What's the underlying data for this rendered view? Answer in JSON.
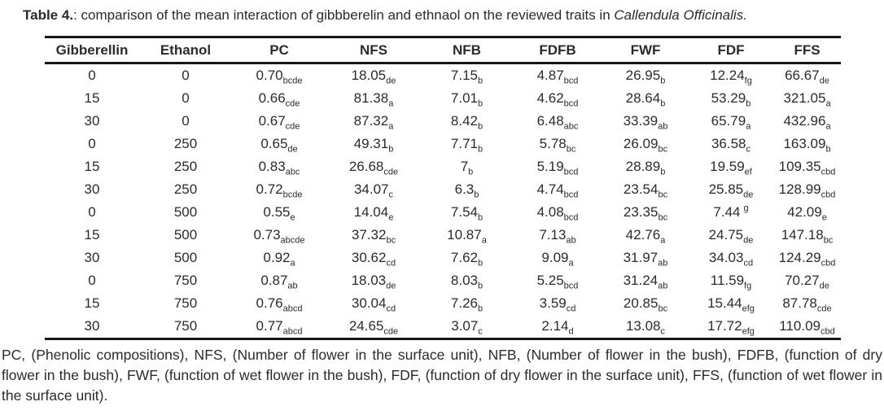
{
  "title": {
    "label": "Table 4.",
    "text": ": comparison of the mean interaction of gibbberelin and ethnaol on the reviewed traits in ",
    "species": "Callendula Officinalis."
  },
  "table": {
    "headers": [
      "Gibberellin",
      "Ethanol",
      "PC",
      "NFS",
      "NFB",
      "FDFB",
      "FWF",
      "FDF",
      "FFS"
    ],
    "rows": [
      [
        {
          "t": "0"
        },
        {
          "t": "0"
        },
        {
          "t": "0.70",
          "sub": "bcde"
        },
        {
          "t": "18.05",
          "sub": "de"
        },
        {
          "t": "7.15",
          "sub": "b"
        },
        {
          "t": "4.87",
          "sub": "bcd"
        },
        {
          "t": "26.95",
          "sub": "b"
        },
        {
          "t": "12.24",
          "sub": "fg"
        },
        {
          "t": "66.67",
          "sub": "de"
        }
      ],
      [
        {
          "t": "15"
        },
        {
          "t": "0"
        },
        {
          "t": "0.66",
          "sub": "cde"
        },
        {
          "t": "81.38",
          "sub": "a"
        },
        {
          "t": "7.01",
          "sub": "b"
        },
        {
          "t": "4.62",
          "sub": "bcd"
        },
        {
          "t": "28.64",
          "sub": "b"
        },
        {
          "t": "53.29",
          "sub": "b"
        },
        {
          "t": "321.05",
          "sub": "a"
        }
      ],
      [
        {
          "t": "30"
        },
        {
          "t": "0"
        },
        {
          "t": "0.67",
          "sub": "cde"
        },
        {
          "t": "87.32",
          "sub": "a"
        },
        {
          "t": "8.42",
          "sub": "b"
        },
        {
          "t": "6.48",
          "sub": "abc"
        },
        {
          "t": "33.39",
          "sub": "ab"
        },
        {
          "t": "65.79",
          "sub": "a"
        },
        {
          "t": "432.96",
          "sub": "a"
        }
      ],
      [
        {
          "t": "0"
        },
        {
          "t": "250"
        },
        {
          "t": "0.65",
          "sub": "de"
        },
        {
          "t": "49.31",
          "sub": "b"
        },
        {
          "t": "7.71",
          "sub": "b"
        },
        {
          "t": "5.78",
          "sub": "bc"
        },
        {
          "t": "26.09",
          "sub": "bc"
        },
        {
          "t": "36.58",
          "sub": "c"
        },
        {
          "t": "163.09",
          "sub": "b"
        }
      ],
      [
        {
          "t": "15"
        },
        {
          "t": "250"
        },
        {
          "t": "0.83",
          "sub": "abc"
        },
        {
          "t": "26.68",
          "sub": "cde"
        },
        {
          "t": "7",
          "sub": "b"
        },
        {
          "t": "5.19",
          "sub": "bcd"
        },
        {
          "t": "28.89",
          "sub": "b"
        },
        {
          "t": "19.59",
          "sub": "ef"
        },
        {
          "t": "109.35",
          "sub": "cbd"
        }
      ],
      [
        {
          "t": "30"
        },
        {
          "t": "250"
        },
        {
          "t": "0.72",
          "sub": "bcde"
        },
        {
          "t": "34.07",
          "sub": "c"
        },
        {
          "t": "6.3",
          "sub": "b"
        },
        {
          "t": "4.74",
          "sub": "bcd"
        },
        {
          "t": "23.54",
          "sub": "bc"
        },
        {
          "t": "25.85",
          "sub": "de"
        },
        {
          "t": "128.99",
          "sub": "cbd"
        }
      ],
      [
        {
          "t": "0"
        },
        {
          "t": "500"
        },
        {
          "t": "0.55",
          "sub": "e"
        },
        {
          "t": "14.04",
          "sub": "e"
        },
        {
          "t": "7.54",
          "sub": "b"
        },
        {
          "t": "4.08",
          "sub": "bcd"
        },
        {
          "t": "23.35",
          "sub": "bc"
        },
        {
          "t": "7.44",
          "sup": "g"
        },
        {
          "t": "42.09",
          "sub": "e"
        }
      ],
      [
        {
          "t": "15"
        },
        {
          "t": "500"
        },
        {
          "t": "0.73",
          "sub": "abcde"
        },
        {
          "t": "37.32",
          "sub": "bc"
        },
        {
          "t": "10.87",
          "sub": "a"
        },
        {
          "t": "7.13",
          "sub": "ab"
        },
        {
          "t": "42.76",
          "sub": "a"
        },
        {
          "t": "24.75",
          "sub": "de"
        },
        {
          "t": "147.18",
          "sub": "bc"
        }
      ],
      [
        {
          "t": "30"
        },
        {
          "t": "500"
        },
        {
          "t": "0.92",
          "sub": "a"
        },
        {
          "t": "30.62",
          "sub": "cd"
        },
        {
          "t": "7.62",
          "sub": "b"
        },
        {
          "t": "9.09",
          "sub": "a"
        },
        {
          "t": "31.97",
          "sub": "ab"
        },
        {
          "t": "34.03",
          "sub": "cd"
        },
        {
          "t": "124.29",
          "sub": "cbd"
        }
      ],
      [
        {
          "t": "0"
        },
        {
          "t": "750"
        },
        {
          "t": "0.87",
          "sub": "ab"
        },
        {
          "t": "18.03",
          "sub": "de"
        },
        {
          "t": "8.03",
          "sub": "b"
        },
        {
          "t": "5.25",
          "sub": "bcd"
        },
        {
          "t": "31.24",
          "sub": "ab"
        },
        {
          "t": "11.59",
          "sub": "fg"
        },
        {
          "t": "70.27",
          "sub": "de"
        }
      ],
      [
        {
          "t": "15"
        },
        {
          "t": "750"
        },
        {
          "t": "0.76",
          "sub": "abcd"
        },
        {
          "t": "30.04",
          "sub": "cd"
        },
        {
          "t": "7.26",
          "sub": "b"
        },
        {
          "t": "3.59",
          "sub": "cd"
        },
        {
          "t": "20.85",
          "sub": "bc"
        },
        {
          "t": "15.44",
          "sub": "efg"
        },
        {
          "t": "87.78",
          "sub": "cde"
        }
      ],
      [
        {
          "t": "30"
        },
        {
          "t": "750"
        },
        {
          "t": "0.77",
          "sub": "abcd"
        },
        {
          "t": "24.65",
          "sub": "cde"
        },
        {
          "t": "3.07",
          "sub": "c"
        },
        {
          "t": "2.14",
          "sub": "d"
        },
        {
          "t": "13.08",
          "sub": "c"
        },
        {
          "t": "17.72",
          "sub": "efg"
        },
        {
          "t": "110.09",
          "sub": "cbd"
        }
      ]
    ]
  },
  "footnote": "PC, (Phenolic compositions), NFS, (Number of flower in the surface unit), NFB, (Number of flower in the bush), FDFB, (function of dry flower in the bush), FWF, (function of wet flower in the bush), FDF, (function of dry flower in the surface unit), FFS, (function of wet flower in the surface unit)."
}
